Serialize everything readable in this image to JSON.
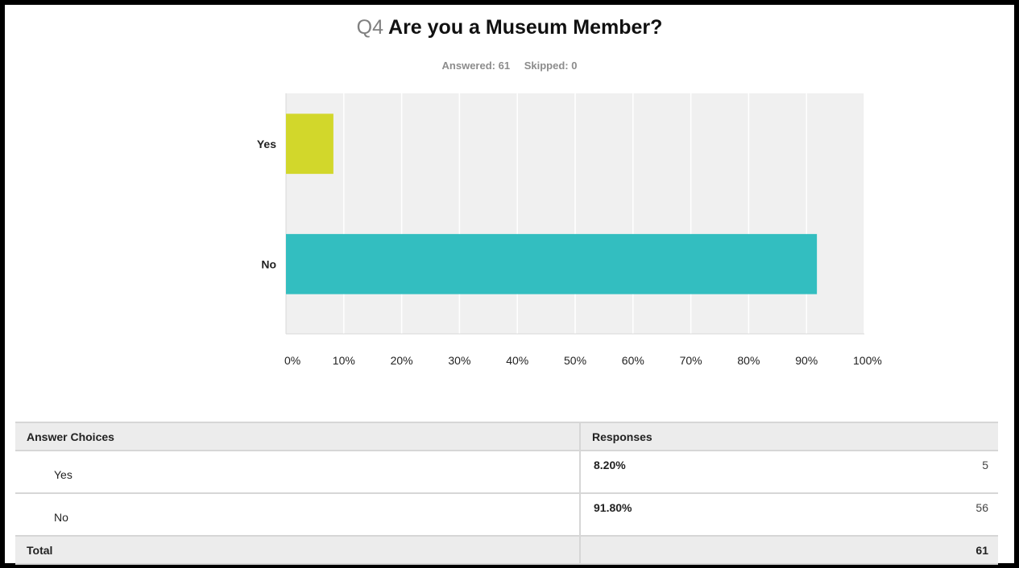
{
  "question": {
    "number": "Q4",
    "text": "Are you a Museum Member?"
  },
  "stats": {
    "answered": "Answered: 61",
    "skipped": "Skipped: 0"
  },
  "chart_data": {
    "type": "bar",
    "orientation": "horizontal",
    "categories": [
      "Yes",
      "No"
    ],
    "values": [
      8.2,
      91.8
    ],
    "colors": [
      "#d2d72b",
      "#33bec0"
    ],
    "xlim": [
      0,
      100
    ],
    "x_ticks": [
      "0%",
      "10%",
      "20%",
      "30%",
      "40%",
      "50%",
      "60%",
      "70%",
      "80%",
      "90%",
      "100%"
    ],
    "grid": true,
    "background": "#f0f0f0"
  },
  "table": {
    "headers": [
      "Answer Choices",
      "Responses"
    ],
    "rows": [
      {
        "choice": "Yes",
        "percent": "8.20%",
        "count": "5"
      },
      {
        "choice": "No",
        "percent": "91.80%",
        "count": "56"
      }
    ],
    "total_label": "Total",
    "total_value": "61"
  }
}
